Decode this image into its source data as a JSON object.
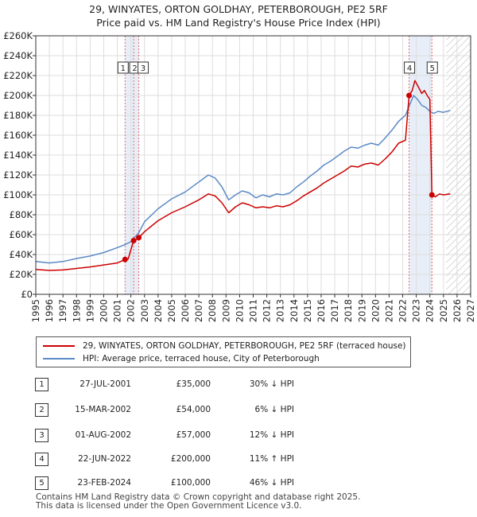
{
  "title_line1": "29, WINYATES, ORTON GOLDHAY, PETERBOROUGH, PE2 5RF",
  "title_line2": "Price paid vs. HM Land Registry's House Price Index (HPI)",
  "legend": {
    "property": "29, WINYATES, ORTON GOLDHAY, PETERBOROUGH, PE2 5RF (terraced house)",
    "hpi": "HPI: Average price, terraced house, City of Peterborough"
  },
  "colors": {
    "property": "#cc0000",
    "hpi": "#5b8ac6",
    "marker_line": "#e06666",
    "shade": "#e8eef8",
    "hatch": "#bbbbbb"
  },
  "transactions": [
    {
      "num": "1",
      "date": "27-JUL-2001",
      "price": "£35,000",
      "hpi": "30% ↓ HPI"
    },
    {
      "num": "2",
      "date": "15-MAR-2002",
      "price": "£54,000",
      "hpi": "6% ↓ HPI"
    },
    {
      "num": "3",
      "date": "01-AUG-2002",
      "price": "£57,000",
      "hpi": "12% ↓ HPI"
    },
    {
      "num": "4",
      "date": "22-JUN-2022",
      "price": "£200,000",
      "hpi": "11% ↑ HPI"
    },
    {
      "num": "5",
      "date": "23-FEB-2024",
      "price": "£100,000",
      "hpi": "46% ↓ HPI"
    }
  ],
  "footer": {
    "line1": "Contains HM Land Registry data © Crown copyright and database right 2025.",
    "line2": "This data is licensed under the Open Government Licence v3.0."
  },
  "chart_data": {
    "type": "line",
    "title": "Price paid vs. HM Land Registry's House Price Index (HPI)",
    "xlim": [
      1995,
      2027
    ],
    "ylim": [
      0,
      260000
    ],
    "x_ticks": [
      "1995",
      "1996",
      "1997",
      "1998",
      "1999",
      "2000",
      "2001",
      "2002",
      "2003",
      "2004",
      "2005",
      "2006",
      "2007",
      "2008",
      "2009",
      "2010",
      "2011",
      "2012",
      "2013",
      "2014",
      "2015",
      "2016",
      "2017",
      "2018",
      "2019",
      "2020",
      "2021",
      "2022",
      "2023",
      "2024",
      "2025",
      "2026",
      "2027"
    ],
    "y_ticks": [
      {
        "value": 0,
        "label": "£0"
      },
      {
        "value": 20000,
        "label": "£20K"
      },
      {
        "value": 40000,
        "label": "£40K"
      },
      {
        "value": 60000,
        "label": "£60K"
      },
      {
        "value": 80000,
        "label": "£80K"
      },
      {
        "value": 100000,
        "label": "£100K"
      },
      {
        "value": 120000,
        "label": "£120K"
      },
      {
        "value": 140000,
        "label": "£140K"
      },
      {
        "value": 160000,
        "label": "£160K"
      },
      {
        "value": 180000,
        "label": "£180K"
      },
      {
        "value": 200000,
        "label": "£200K"
      },
      {
        "value": 220000,
        "label": "£220K"
      },
      {
        "value": 240000,
        "label": "£240K"
      },
      {
        "value": 260000,
        "label": "£260K"
      }
    ],
    "forecast_start": 2025.2,
    "sales": [
      {
        "label": "1",
        "x": 2001.57,
        "y": 35000
      },
      {
        "label": "2",
        "x": 2002.2,
        "y": 54000
      },
      {
        "label": "3",
        "x": 2002.58,
        "y": 57000
      },
      {
        "label": "4",
        "x": 2022.47,
        "y": 200000
      },
      {
        "label": "5",
        "x": 2024.15,
        "y": 100000
      }
    ],
    "series": [
      {
        "name": "29, WINYATES, ORTON GOLDHAY, PETERBOROUGH, PE2 5RF (terraced house)",
        "points": [
          [
            1995.0,
            25000
          ],
          [
            1996.0,
            24000
          ],
          [
            1997.0,
            24500
          ],
          [
            1998.0,
            26000
          ],
          [
            1999.0,
            27500
          ],
          [
            2000.0,
            29500
          ],
          [
            2001.0,
            31500
          ],
          [
            2001.57,
            35000
          ],
          [
            2001.8,
            35500
          ],
          [
            2002.2,
            54000
          ],
          [
            2002.4,
            55000
          ],
          [
            2002.58,
            57000
          ],
          [
            2003.0,
            63000
          ],
          [
            2004.0,
            74000
          ],
          [
            2005.0,
            82000
          ],
          [
            2006.0,
            88000
          ],
          [
            2007.0,
            95000
          ],
          [
            2007.7,
            101000
          ],
          [
            2008.2,
            99000
          ],
          [
            2008.7,
            92000
          ],
          [
            2009.2,
            82000
          ],
          [
            2009.7,
            88000
          ],
          [
            2010.2,
            92000
          ],
          [
            2010.7,
            90000
          ],
          [
            2011.2,
            87000
          ],
          [
            2011.7,
            88000
          ],
          [
            2012.2,
            87000
          ],
          [
            2012.7,
            89000
          ],
          [
            2013.2,
            88000
          ],
          [
            2013.7,
            90000
          ],
          [
            2014.2,
            94000
          ],
          [
            2014.7,
            99000
          ],
          [
            2015.2,
            103000
          ],
          [
            2015.7,
            107000
          ],
          [
            2016.2,
            112000
          ],
          [
            2016.7,
            116000
          ],
          [
            2017.2,
            120000
          ],
          [
            2017.7,
            124000
          ],
          [
            2018.2,
            129000
          ],
          [
            2018.7,
            128000
          ],
          [
            2019.2,
            131000
          ],
          [
            2019.7,
            132000
          ],
          [
            2020.2,
            130000
          ],
          [
            2020.7,
            136000
          ],
          [
            2021.2,
            143000
          ],
          [
            2021.7,
            152000
          ],
          [
            2022.2,
            155000
          ],
          [
            2022.47,
            200000
          ],
          [
            2022.7,
            205000
          ],
          [
            2022.9,
            215000
          ],
          [
            2023.1,
            210000
          ],
          [
            2023.4,
            202000
          ],
          [
            2023.6,
            205000
          ],
          [
            2023.8,
            200000
          ],
          [
            2024.0,
            196000
          ],
          [
            2024.15,
            100000
          ],
          [
            2024.4,
            98000
          ],
          [
            2024.7,
            101000
          ],
          [
            2025.0,
            100000
          ],
          [
            2025.5,
            101000
          ]
        ]
      },
      {
        "name": "HPI: Average price, terraced house, City of Peterborough",
        "points": [
          [
            1995.0,
            33000
          ],
          [
            1996.0,
            31500
          ],
          [
            1997.0,
            33000
          ],
          [
            1998.0,
            36000
          ],
          [
            1999.0,
            38500
          ],
          [
            2000.0,
            42000
          ],
          [
            2001.0,
            47000
          ],
          [
            2001.57,
            50000
          ],
          [
            2002.0,
            53000
          ],
          [
            2002.58,
            62000
          ],
          [
            2003.0,
            73000
          ],
          [
            2004.0,
            86000
          ],
          [
            2005.0,
            96000
          ],
          [
            2006.0,
            103000
          ],
          [
            2007.0,
            113000
          ],
          [
            2007.7,
            120000
          ],
          [
            2008.2,
            117000
          ],
          [
            2008.7,
            108000
          ],
          [
            2009.2,
            95000
          ],
          [
            2009.7,
            100000
          ],
          [
            2010.2,
            104000
          ],
          [
            2010.7,
            102000
          ],
          [
            2011.2,
            97000
          ],
          [
            2011.7,
            100000
          ],
          [
            2012.2,
            98000
          ],
          [
            2012.7,
            101000
          ],
          [
            2013.2,
            100000
          ],
          [
            2013.7,
            102000
          ],
          [
            2014.2,
            108000
          ],
          [
            2014.7,
            113000
          ],
          [
            2015.2,
            119000
          ],
          [
            2015.7,
            124000
          ],
          [
            2016.2,
            130000
          ],
          [
            2016.7,
            134000
          ],
          [
            2017.2,
            139000
          ],
          [
            2017.7,
            144000
          ],
          [
            2018.2,
            148000
          ],
          [
            2018.7,
            147000
          ],
          [
            2019.2,
            150000
          ],
          [
            2019.7,
            152000
          ],
          [
            2020.2,
            150000
          ],
          [
            2020.7,
            157000
          ],
          [
            2021.2,
            165000
          ],
          [
            2021.7,
            174000
          ],
          [
            2022.2,
            180000
          ],
          [
            2022.5,
            190000
          ],
          [
            2022.8,
            200000
          ],
          [
            2023.1,
            196000
          ],
          [
            2023.4,
            190000
          ],
          [
            2023.7,
            188000
          ],
          [
            2024.0,
            184000
          ],
          [
            2024.3,
            182000
          ],
          [
            2024.6,
            184000
          ],
          [
            2025.0,
            183000
          ],
          [
            2025.5,
            185000
          ]
        ]
      }
    ]
  }
}
